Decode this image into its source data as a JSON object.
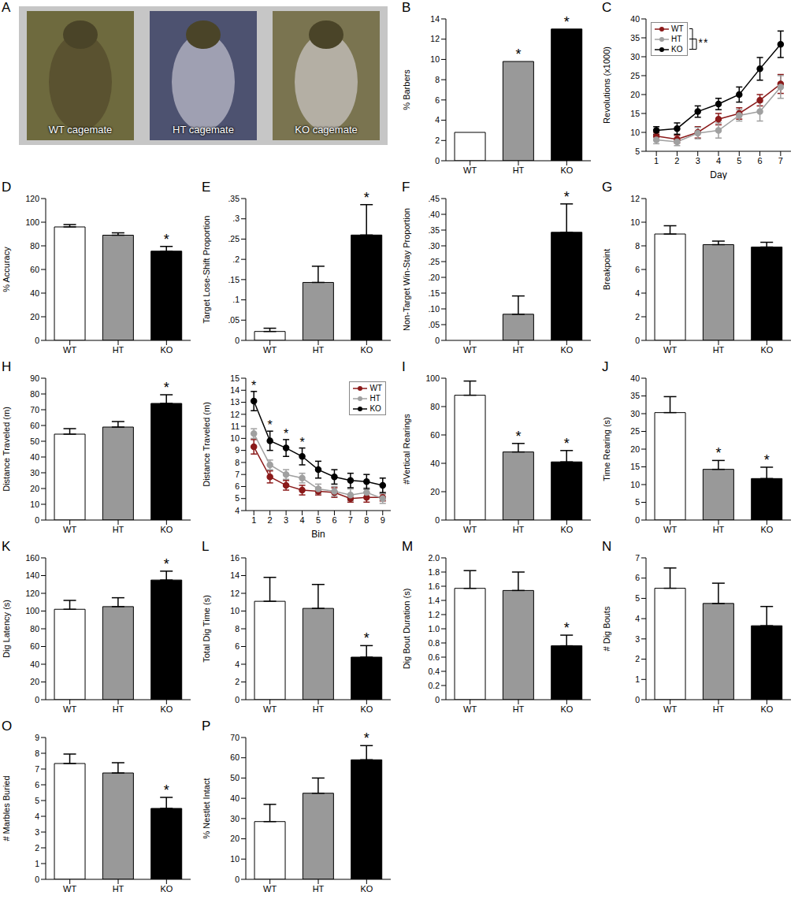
{
  "photos": {
    "panel": "A",
    "labels": [
      "WT cagemate",
      "HT cagemate",
      "KO cagemate"
    ]
  },
  "chart_data": [
    {
      "panel": "B",
      "type": "bar",
      "ylabel": "% Barbers",
      "categories": [
        "WT",
        "HT",
        "KO"
      ],
      "values": [
        2.8,
        9.8,
        13
      ],
      "colors": [
        "#ffffff",
        "#999999",
        "#000000"
      ],
      "ylim": [
        0,
        14
      ],
      "yticks": [
        0,
        2,
        4,
        6,
        8,
        10,
        12,
        14
      ],
      "annotations": [
        {
          "x": "HT",
          "text": "*"
        },
        {
          "x": "KO",
          "text": "*"
        }
      ]
    },
    {
      "panel": "C",
      "type": "line",
      "xlabel": "Day",
      "ylabel": "Revolutions (x1000)",
      "x": [
        1,
        2,
        3,
        4,
        5,
        6,
        7
      ],
      "xlim": [
        0.5,
        7.5
      ],
      "xticks": [
        1,
        2,
        3,
        4,
        5,
        6,
        7
      ],
      "ylim": [
        5,
        40
      ],
      "yticks": [
        5,
        10,
        15,
        20,
        25,
        30,
        35,
        40
      ],
      "legend": "upper left",
      "series": [
        {
          "name": "WT",
          "color": "#8b1a1a",
          "values": [
            9,
            8.2,
            10,
            13.5,
            15,
            18.5,
            22.8
          ],
          "errors": [
            1,
            1,
            1.5,
            1.5,
            1.5,
            1.5,
            2.5
          ]
        },
        {
          "name": "HT",
          "color": "#a0a0a0",
          "values": [
            8,
            7.5,
            9.8,
            10.5,
            14.5,
            15.5,
            22
          ],
          "errors": [
            1,
            1,
            1.5,
            2,
            1.5,
            2.5,
            3
          ]
        },
        {
          "name": "KO",
          "color": "#000000",
          "values": [
            10.5,
            11,
            15.5,
            17.5,
            20,
            26.8,
            33.3
          ],
          "errors": [
            1,
            1.5,
            1.5,
            1.5,
            2,
            3,
            3.5
          ]
        }
      ],
      "annotations": [
        {
          "text": "*"
        },
        {
          "text": "*"
        }
      ]
    },
    {
      "panel": "D",
      "type": "bar",
      "ylabel": "% Accuracy",
      "categories": [
        "WT",
        "HT",
        "KO"
      ],
      "values": [
        96,
        89,
        75.5
      ],
      "errors": [
        2,
        2,
        4
      ],
      "colors": [
        "#ffffff",
        "#999999",
        "#000000"
      ],
      "ylim": [
        0,
        120
      ],
      "yticks": [
        0,
        20,
        40,
        60,
        80,
        100,
        120
      ],
      "annotations": [
        {
          "x": "KO",
          "text": "*"
        }
      ]
    },
    {
      "panel": "E",
      "type": "bar",
      "ylabel": "Target Lose-Shift Proportion",
      "categories": [
        "WT",
        "HT",
        "KO"
      ],
      "values": [
        0.022,
        0.143,
        0.26
      ],
      "errors": [
        0.008,
        0.04,
        0.075
      ],
      "colors": [
        "#ffffff",
        "#999999",
        "#000000"
      ],
      "ylim": [
        0,
        0.35
      ],
      "yticks": [
        0,
        {
          "value": 0.05,
          "label": ".05"
        },
        {
          "value": 0.1,
          "label": ".1"
        },
        {
          "value": 0.15,
          "label": ".15"
        },
        {
          "value": 0.2,
          "label": ".2"
        },
        {
          "value": 0.25,
          "label": ".25"
        },
        {
          "value": 0.3,
          "label": ".3"
        },
        {
          "value": 0.35,
          "label": ".35"
        }
      ],
      "annotations": [
        {
          "x": "KO",
          "text": "*"
        }
      ]
    },
    {
      "panel": "F",
      "type": "bar",
      "ylabel": "Non-Target Win-Stay Proportion",
      "categories": [
        "WT",
        "HT",
        "KO"
      ],
      "values": [
        0,
        0.083,
        0.343
      ],
      "errors": [
        0,
        0.058,
        0.09
      ],
      "colors": [
        "#ffffff",
        "#999999",
        "#000000"
      ],
      "ylim": [
        0,
        0.45
      ],
      "yticks": [
        0,
        {
          "value": 0.05,
          "label": ".05"
        },
        {
          "value": 0.1,
          "label": ".10"
        },
        {
          "value": 0.15,
          "label": ".15"
        },
        {
          "value": 0.2,
          "label": ".20"
        },
        {
          "value": 0.25,
          "label": ".25"
        },
        {
          "value": 0.3,
          "label": ".30"
        },
        {
          "value": 0.35,
          "label": ".35"
        },
        {
          "value": 0.4,
          "label": ".40"
        },
        {
          "value": 0.45,
          "label": ".45"
        }
      ],
      "annotations": [
        {
          "x": "KO",
          "text": "*"
        }
      ]
    },
    {
      "panel": "G",
      "type": "bar",
      "ylabel": "Breakpoint",
      "categories": [
        "WT",
        "HT",
        "KO"
      ],
      "values": [
        9,
        8.1,
        7.9
      ],
      "errors": [
        0.7,
        0.3,
        0.4
      ],
      "colors": [
        "#ffffff",
        "#999999",
        "#000000"
      ],
      "ylim": [
        0,
        12
      ],
      "yticks": [
        0,
        2,
        4,
        6,
        8,
        10,
        12
      ]
    },
    {
      "panel": "H",
      "type": "bar",
      "ylabel": "Distance Traveled (m)",
      "categories": [
        "WT",
        "HT",
        "KO"
      ],
      "values": [
        54.5,
        59,
        74
      ],
      "errors": [
        3.5,
        3.5,
        5.5
      ],
      "colors": [
        "#ffffff",
        "#999999",
        "#000000"
      ],
      "ylim": [
        0,
        90
      ],
      "yticks": [
        0,
        10,
        20,
        30,
        40,
        50,
        60,
        70,
        80,
        90
      ],
      "annotations": [
        {
          "x": "KO",
          "text": "*"
        }
      ]
    },
    {
      "type": "line",
      "xlabel": "Bin",
      "ylabel": "Distance Traveled (m)",
      "x": [
        1,
        2,
        3,
        4,
        5,
        6,
        7,
        8,
        9
      ],
      "xlim": [
        0.5,
        9.5
      ],
      "xticks": [
        1,
        2,
        3,
        4,
        5,
        6,
        7,
        8,
        9
      ],
      "ylim": [
        4,
        15
      ],
      "yticks": [
        4,
        5,
        6,
        7,
        8,
        9,
        10,
        11,
        12,
        13,
        14,
        15
      ],
      "legend": "upper right",
      "series": [
        {
          "name": "WT",
          "color": "#8b1a1a",
          "values": [
            9.3,
            6.8,
            6.1,
            5.7,
            5.6,
            5.5,
            5.0,
            5.1,
            5.1
          ],
          "errors": [
            0.6,
            0.5,
            0.4,
            0.4,
            0.3,
            0.4,
            0.3,
            0.4,
            0.3
          ]
        },
        {
          "name": "HT",
          "color": "#a0a0a0",
          "values": [
            10.4,
            7.8,
            7.0,
            6.7,
            5.8,
            5.6,
            5.3,
            5.5,
            5.0
          ],
          "errors": [
            0.4,
            0.4,
            0.4,
            0.4,
            0.4,
            0.4,
            0.5,
            0.4,
            0.4
          ]
        },
        {
          "name": "KO",
          "color": "#000000",
          "values": [
            13.1,
            9.8,
            9.2,
            8.5,
            7.4,
            6.8,
            6.5,
            6.4,
            6.1
          ],
          "errors": [
            0.8,
            0.8,
            0.7,
            0.7,
            0.7,
            0.6,
            0.6,
            0.6,
            0.6
          ]
        }
      ],
      "annotations": [
        {
          "x": 1,
          "text": "*"
        },
        {
          "x": 2,
          "text": "*"
        },
        {
          "x": 3,
          "text": "*"
        },
        {
          "x": 4,
          "text": "*"
        }
      ]
    },
    {
      "panel": "I",
      "type": "bar",
      "ylabel": "#Vertical Rearings",
      "categories": [
        "WT",
        "HT",
        "KO"
      ],
      "values": [
        88,
        48,
        41
      ],
      "errors": [
        10,
        6,
        8
      ],
      "colors": [
        "#ffffff",
        "#999999",
        "#000000"
      ],
      "ylim": [
        0,
        100
      ],
      "yticks": [
        0,
        20,
        40,
        60,
        80,
        100
      ],
      "annotations": [
        {
          "x": "HT",
          "text": "*"
        },
        {
          "x": "KO",
          "text": "*"
        }
      ]
    },
    {
      "panel": "J",
      "type": "bar",
      "ylabel": "Time Rearing (s)",
      "categories": [
        "WT",
        "HT",
        "KO"
      ],
      "values": [
        30.3,
        14.3,
        11.7
      ],
      "errors": [
        4.5,
        2.5,
        3.2
      ],
      "colors": [
        "#ffffff",
        "#999999",
        "#000000"
      ],
      "ylim": [
        0,
        40
      ],
      "yticks": [
        0,
        5,
        10,
        15,
        20,
        25,
        30,
        35,
        40
      ],
      "annotations": [
        {
          "x": "HT",
          "text": "*"
        },
        {
          "x": "KO",
          "text": "*"
        }
      ]
    },
    {
      "panel": "K",
      "type": "bar",
      "ylabel": "Dig Latency (s)",
      "categories": [
        "WT",
        "HT",
        "KO"
      ],
      "values": [
        102,
        105,
        135
      ],
      "errors": [
        10,
        10,
        10
      ],
      "colors": [
        "#ffffff",
        "#999999",
        "#000000"
      ],
      "ylim": [
        0,
        160
      ],
      "yticks": [
        0,
        20,
        40,
        60,
        80,
        100,
        120,
        140,
        160
      ],
      "annotations": [
        {
          "x": "KO",
          "text": "*"
        }
      ]
    },
    {
      "panel": "L",
      "type": "bar",
      "ylabel": "Total Dig Time (s)",
      "categories": [
        "WT",
        "HT",
        "KO"
      ],
      "values": [
        11.1,
        10.3,
        4.8
      ],
      "errors": [
        2.7,
        2.7,
        1.3
      ],
      "colors": [
        "#ffffff",
        "#999999",
        "#000000"
      ],
      "ylim": [
        0,
        16
      ],
      "yticks": [
        0,
        2,
        4,
        6,
        8,
        10,
        12,
        14,
        16
      ],
      "annotations": [
        {
          "x": "KO",
          "text": "*"
        }
      ]
    },
    {
      "panel": "M",
      "type": "bar",
      "ylabel": "Dig Bout Duration (s)",
      "categories": [
        "WT",
        "HT",
        "KO"
      ],
      "values": [
        1.57,
        1.54,
        0.76
      ],
      "errors": [
        0.25,
        0.26,
        0.15
      ],
      "colors": [
        "#ffffff",
        "#999999",
        "#000000"
      ],
      "ylim": [
        0,
        2
      ],
      "yticks": [
        0,
        0.2,
        0.4,
        0.6,
        0.8,
        {
          "value": 1,
          "label": "1.0"
        },
        1.2,
        1.4,
        1.6,
        1.8,
        {
          "value": 2,
          "label": "2.0"
        }
      ],
      "annotations": [
        {
          "x": "KO",
          "text": "*"
        }
      ]
    },
    {
      "panel": "N",
      "type": "bar",
      "ylabel": "# Dig Bouts",
      "categories": [
        "WT",
        "HT",
        "KO"
      ],
      "values": [
        5.5,
        4.75,
        3.65
      ],
      "errors": [
        1,
        1,
        0.95
      ],
      "colors": [
        "#ffffff",
        "#999999",
        "#000000"
      ],
      "ylim": [
        0,
        7
      ],
      "yticks": [
        0,
        1,
        2,
        3,
        4,
        5,
        6,
        7
      ]
    },
    {
      "panel": "O",
      "type": "bar",
      "ylabel": "# Marbles  Buried",
      "categories": [
        "WT",
        "HT",
        "KO"
      ],
      "values": [
        7.35,
        6.75,
        4.5
      ],
      "errors": [
        0.6,
        0.65,
        0.7
      ],
      "colors": [
        "#ffffff",
        "#999999",
        "#000000"
      ],
      "ylim": [
        0,
        9
      ],
      "yticks": [
        0,
        1,
        2,
        3,
        4,
        5,
        6,
        7,
        8,
        9
      ],
      "annotations": [
        {
          "x": "KO",
          "text": "*"
        }
      ]
    },
    {
      "panel": "P",
      "type": "bar",
      "ylabel": "% Nestlet Intact",
      "categories": [
        "WT",
        "HT",
        "KO"
      ],
      "values": [
        28.5,
        42.5,
        59
      ],
      "errors": [
        8.5,
        7.5,
        7
      ],
      "colors": [
        "#ffffff",
        "#999999",
        "#000000"
      ],
      "ylim": [
        0,
        70
      ],
      "yticks": [
        0,
        10,
        20,
        30,
        40,
        50,
        60,
        70
      ],
      "annotations": [
        {
          "x": "KO",
          "text": "*"
        }
      ]
    }
  ]
}
